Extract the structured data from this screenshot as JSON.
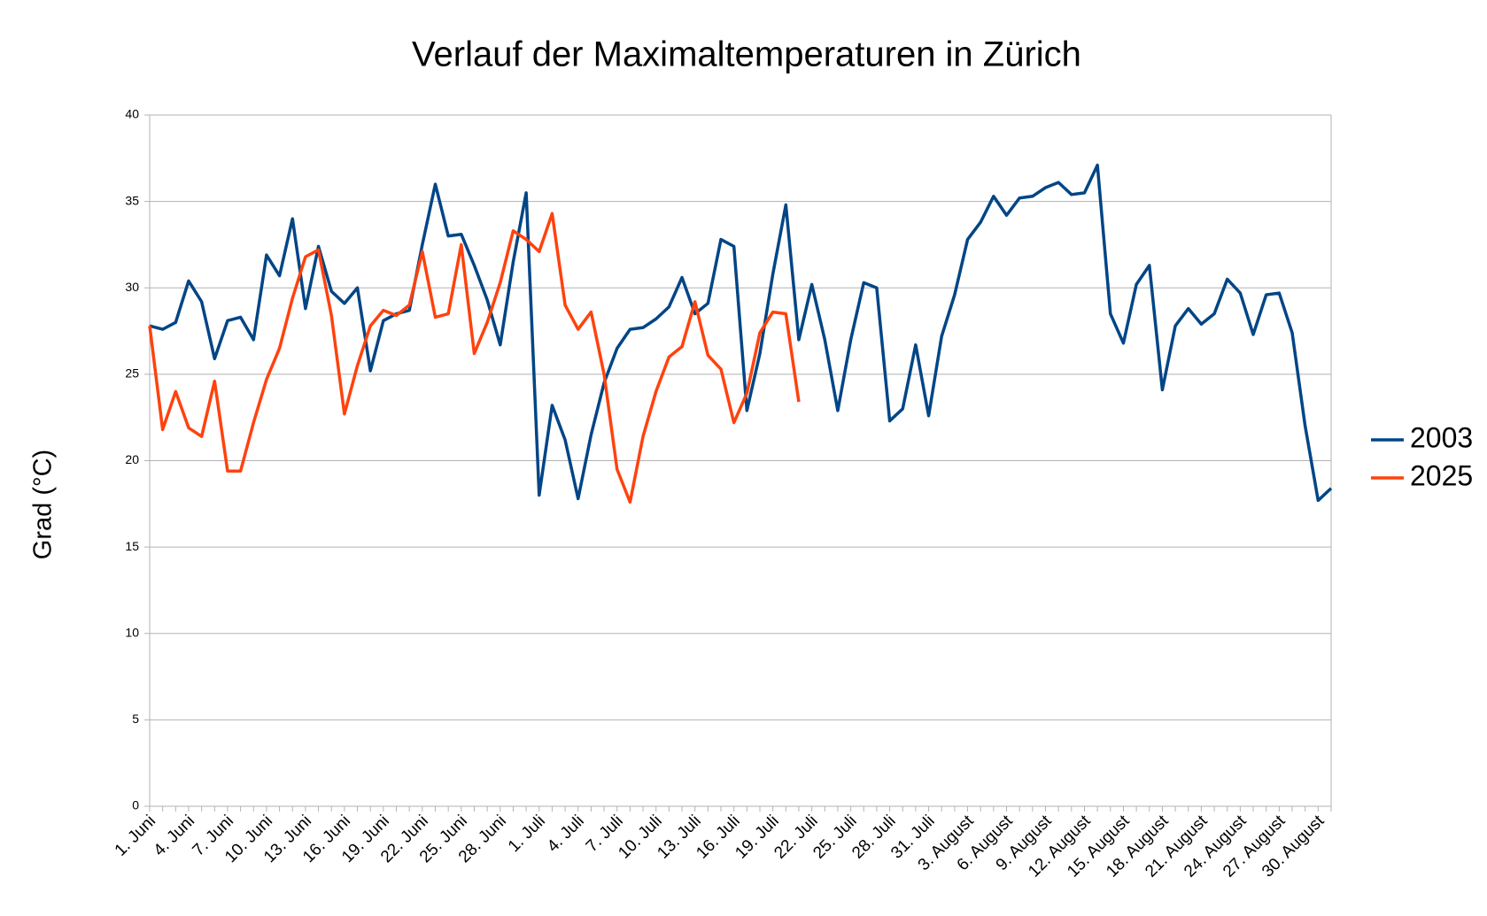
{
  "chart_data": {
    "type": "line",
    "title": "Verlauf der Maximaltemperaturen in Zürich",
    "y_label": "Grad (°C)",
    "categories": [
      "1. Juni",
      null,
      null,
      "4. Juni",
      null,
      null,
      "7. Juni",
      null,
      null,
      "10. Juni",
      null,
      null,
      "13. Juni",
      null,
      null,
      "16. Juni",
      null,
      null,
      "19. Juni",
      null,
      null,
      "22. Juni",
      null,
      null,
      "25. Juni",
      null,
      null,
      "28. Juni",
      null,
      null,
      "1. Juli",
      null,
      null,
      "4. Juli",
      null,
      null,
      "7. Juli",
      null,
      null,
      "10. Juli",
      null,
      null,
      "13. Juli",
      null,
      null,
      "16. Juli",
      null,
      null,
      "19. Juli",
      null,
      null,
      "22. Juli",
      null,
      null,
      "25. Juli",
      null,
      null,
      "28. Juli",
      null,
      null,
      "31. Juli",
      null,
      null,
      "3. August",
      null,
      null,
      "6. August",
      null,
      null,
      "9. August",
      null,
      null,
      "12. August",
      null,
      null,
      "15. August",
      null,
      null,
      "18. August",
      null,
      null,
      "21. August",
      null,
      null,
      "24. August",
      null,
      null,
      "27. August",
      null,
      null,
      "30. August",
      null
    ],
    "series": [
      {
        "name": "2003",
        "color": "#004586",
        "values": [
          27.8,
          27.6,
          28.0,
          30.4,
          29.2,
          25.9,
          28.1,
          28.3,
          27.0,
          31.9,
          30.7,
          34.0,
          28.8,
          32.4,
          29.8,
          29.1,
          30.0,
          25.2,
          28.1,
          28.5,
          28.7,
          32.5,
          36.0,
          33.0,
          33.1,
          31.3,
          29.3,
          26.7,
          31.5,
          35.5,
          18.0,
          23.2,
          21.2,
          17.8,
          21.5,
          24.5,
          26.5,
          27.6,
          27.7,
          28.2,
          28.9,
          30.6,
          28.5,
          29.1,
          32.8,
          32.4,
          22.9,
          26.2,
          30.8,
          34.8,
          27.0,
          30.2,
          27.0,
          22.9,
          27.0,
          30.3,
          30.0,
          22.3,
          23.0,
          26.7,
          22.6,
          27.2,
          29.6,
          32.8,
          33.8,
          35.3,
          34.2,
          35.2,
          35.3,
          35.8,
          36.1,
          35.4,
          35.5,
          37.1,
          28.5,
          26.8,
          30.2,
          31.3,
          24.1,
          27.8,
          28.8,
          27.9,
          28.5,
          30.5,
          29.7,
          27.3,
          29.6,
          29.7,
          27.4,
          22.0,
          17.7,
          18.4
        ]
      },
      {
        "name": "2025",
        "color": "#ff420e",
        "values": [
          27.8,
          21.8,
          24.0,
          21.9,
          21.4,
          24.6,
          19.4,
          19.4,
          22.2,
          24.7,
          26.5,
          29.4,
          31.8,
          32.2,
          28.4,
          22.7,
          25.5,
          27.8,
          28.7,
          28.4,
          29.0,
          32.1,
          28.3,
          28.5,
          32.5,
          26.2,
          28.0,
          30.3,
          33.3,
          32.8,
          32.1,
          34.3,
          29.0,
          27.6,
          28.6,
          25.0,
          19.5,
          17.6,
          21.4,
          24.0,
          26.0,
          26.6,
          29.2,
          26.1,
          25.3,
          22.2,
          23.9,
          27.4,
          28.6,
          28.5,
          23.4,
          null,
          null,
          null,
          null,
          null,
          null,
          null,
          null,
          null,
          null,
          null,
          null,
          null,
          null,
          null,
          null,
          null,
          null,
          null,
          null,
          null,
          null,
          null,
          null,
          null,
          null,
          null,
          null,
          null,
          null,
          null,
          null,
          null,
          null,
          null,
          null,
          null,
          null,
          null,
          null,
          null
        ]
      }
    ],
    "ylim": [
      0,
      40
    ],
    "yticks": [
      0,
      5,
      10,
      15,
      20,
      25,
      30,
      35,
      40
    ],
    "grid": true,
    "legend": "right"
  }
}
